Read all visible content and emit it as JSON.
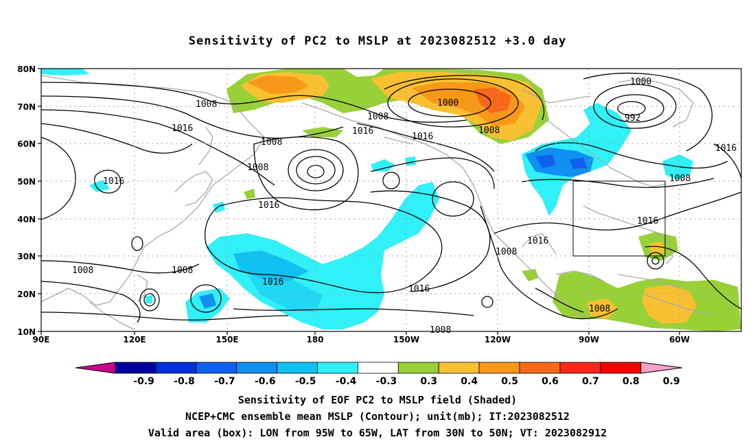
{
  "title": "Sensitivity of PC2 to MSLP at 2023082512 +3.0 day",
  "lat_labels": [
    "80N",
    "70N",
    "60N",
    "50N",
    "40N",
    "30N",
    "20N",
    "10N"
  ],
  "lon_labels": [
    "90E",
    "120E",
    "150E",
    "180",
    "150W",
    "120W",
    "90W",
    "60W"
  ],
  "contour_labels": [
    {
      "text": "1008"
    },
    {
      "text": "1016"
    },
    {
      "text": "1008"
    },
    {
      "text": "1008"
    },
    {
      "text": "1016"
    },
    {
      "text": "1000"
    },
    {
      "text": "1008"
    },
    {
      "text": "1016"
    },
    {
      "text": "1008"
    },
    {
      "text": "1016"
    },
    {
      "text": "1000"
    },
    {
      "text": "992"
    },
    {
      "text": "1016"
    },
    {
      "text": "1008"
    },
    {
      "text": "1016"
    },
    {
      "text": "1016"
    },
    {
      "text": "1008"
    },
    {
      "text": "1008"
    },
    {
      "text": "1008"
    },
    {
      "text": "1016"
    },
    {
      "text": "1016"
    },
    {
      "text": "1008"
    },
    {
      "text": "1008"
    }
  ],
  "colorbar": {
    "labels": [
      "-0.9",
      "-0.8",
      "-0.7",
      "-0.6",
      "-0.5",
      "-0.4",
      "-0.3",
      "0.3",
      "0.4",
      "0.5",
      "0.6",
      "0.7",
      "0.8",
      "0.9"
    ],
    "colors": [
      "#0000a0",
      "#0030d8",
      "#1060f0",
      "#1090f0",
      "#10c0f0",
      "#30f0f8",
      "#ffffff",
      "#98d038",
      "#f8c030",
      "#f89818",
      "#f86818",
      "#f82818",
      "#f80000"
    ],
    "left_arrow_color": "#c8008c",
    "right_arrow_color": "#f8a0c8"
  },
  "box": {
    "lon_from": "95W",
    "lon_to": "65W",
    "lat_from": "30N",
    "lat_to": "50N"
  },
  "captions": [
    "Sensitivity of EOF PC2 to MSLP field (Shaded)",
    "NCEP+CMC ensemble mean MSLP (Contour); unit(mb); IT:2023082512",
    "Valid area (box): LON from 95W to 65W, LAT from 30N to 50N; VT: 2023082912"
  ]
}
